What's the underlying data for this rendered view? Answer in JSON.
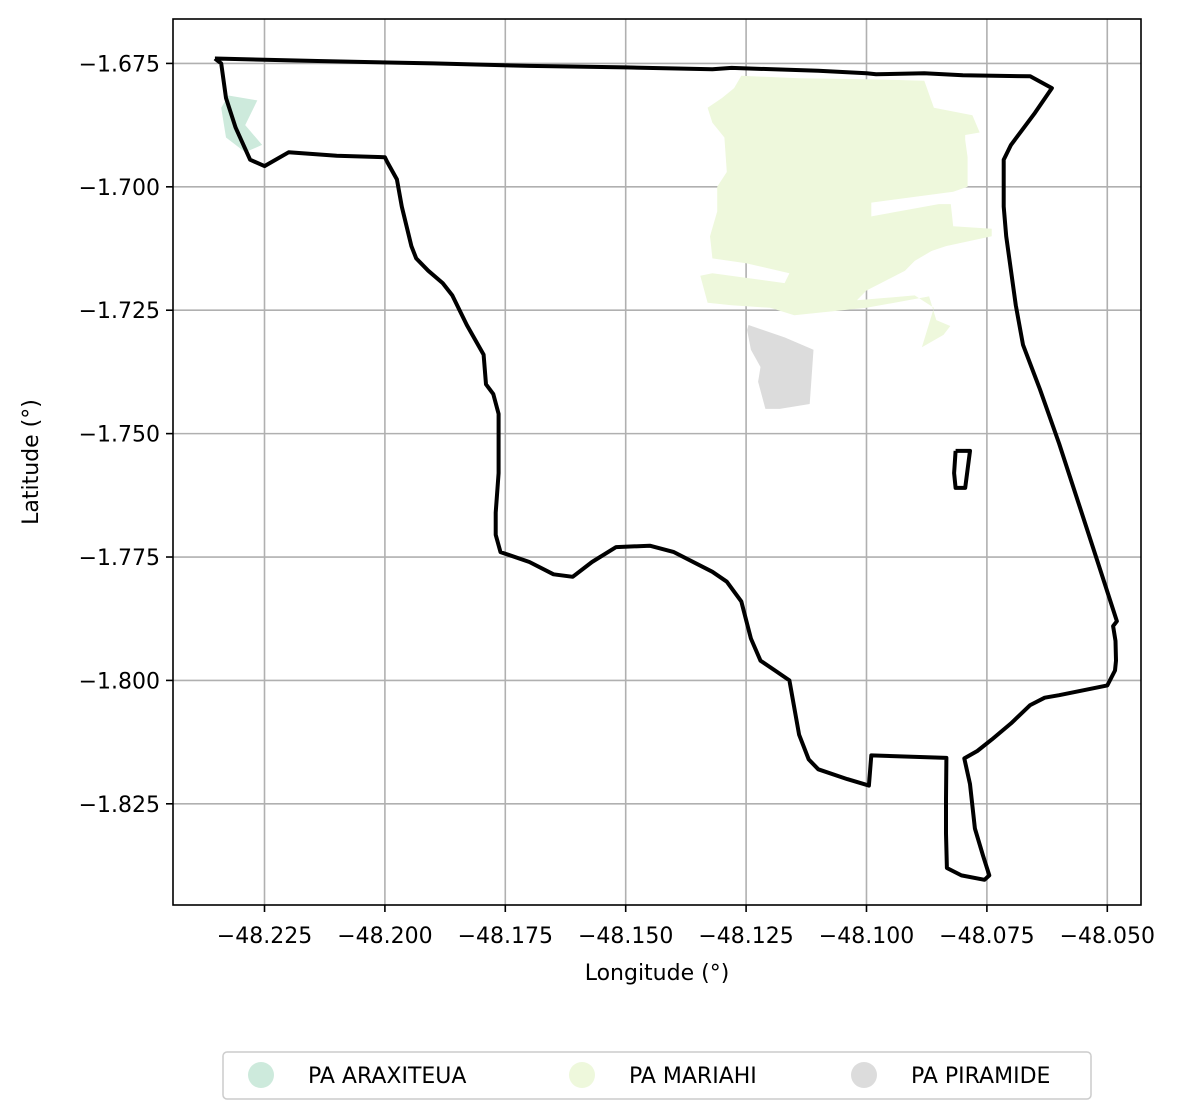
{
  "chart_data": {
    "type": "map",
    "xlabel": "Longitude (°)",
    "ylabel": "Latitude (°)",
    "xlim": [
      -48.244,
      -48.043
    ],
    "ylim": [
      -1.8455,
      -1.666
    ],
    "grid": true,
    "xticks": [
      -48.225,
      -48.2,
      -48.175,
      -48.15,
      -48.125,
      -48.1,
      -48.075,
      -48.05
    ],
    "xtick_labels": [
      "−48.225",
      "−48.200",
      "−48.175",
      "−48.150",
      "−48.125",
      "−48.100",
      "−48.075",
      "−48.050"
    ],
    "yticks": [
      -1.675,
      -1.7,
      -1.725,
      -1.75,
      -1.775,
      -1.8,
      -1.825
    ],
    "ytick_labels": [
      "−1.675",
      "−1.700",
      "−1.725",
      "−1.750",
      "−1.775",
      "−1.800",
      "−1.825"
    ],
    "legend_position": "below",
    "legend": [
      {
        "label": "PA ARAXITEUA",
        "color": "#cdeadc"
      },
      {
        "label": "PA MARIAHI",
        "color": "#eef8dc"
      },
      {
        "label": "PA PIRAMIDE",
        "color": "#dcdcdc"
      }
    ],
    "boundary_color": "#000000",
    "boundary": [
      [
        -48.2353,
        -1.674
      ],
      [
        -48.214,
        -1.6745
      ],
      [
        -48.19,
        -1.675
      ],
      [
        -48.17,
        -1.6755
      ],
      [
        -48.15,
        -1.6758
      ],
      [
        -48.132,
        -1.6762
      ],
      [
        -48.128,
        -1.6759
      ],
      [
        -48.11,
        -1.6765
      ],
      [
        -48.1,
        -1.677
      ],
      [
        -48.098,
        -1.6772
      ],
      [
        -48.088,
        -1.677
      ],
      [
        -48.08,
        -1.6774
      ],
      [
        -48.066,
        -1.6776
      ],
      [
        -48.0615,
        -1.68
      ],
      [
        -48.065,
        -1.685
      ],
      [
        -48.07,
        -1.6915
      ],
      [
        -48.0715,
        -1.6945
      ],
      [
        -48.0715,
        -1.704
      ],
      [
        -48.071,
        -1.71
      ],
      [
        -48.069,
        -1.724
      ],
      [
        -48.0675,
        -1.732
      ],
      [
        -48.064,
        -1.741
      ],
      [
        -48.06,
        -1.752
      ],
      [
        -48.056,
        -1.764
      ],
      [
        -48.052,
        -1.776
      ],
      [
        -48.048,
        -1.788
      ],
      [
        -48.0488,
        -1.789
      ],
      [
        -48.0483,
        -1.792
      ],
      [
        -48.0482,
        -1.796
      ],
      [
        -48.0484,
        -1.798
      ],
      [
        -48.05,
        -1.801
      ],
      [
        -48.06,
        -1.803
      ],
      [
        -48.063,
        -1.8035
      ],
      [
        -48.066,
        -1.805
      ],
      [
        -48.07,
        -1.8087
      ],
      [
        -48.074,
        -1.812
      ],
      [
        -48.077,
        -1.8143
      ],
      [
        -48.0797,
        -1.8158
      ],
      [
        -48.0785,
        -1.821
      ],
      [
        -48.0775,
        -1.83
      ],
      [
        -48.0758,
        -1.8355
      ],
      [
        -48.0745,
        -1.8395
      ],
      [
        -48.0755,
        -1.8404
      ],
      [
        -48.0803,
        -1.8395
      ],
      [
        -48.0833,
        -1.838
      ],
      [
        -48.0835,
        -1.831
      ],
      [
        -48.0835,
        -1.824
      ],
      [
        -48.0834,
        -1.8157
      ],
      [
        -48.099,
        -1.8152
      ],
      [
        -48.0995,
        -1.8213
      ],
      [
        -48.104,
        -1.82
      ],
      [
        -48.11,
        -1.818
      ],
      [
        -48.112,
        -1.816
      ],
      [
        -48.114,
        -1.811
      ],
      [
        -48.116,
        -1.8
      ],
      [
        -48.119,
        -1.798
      ],
      [
        -48.122,
        -1.796
      ],
      [
        -48.124,
        -1.7915
      ],
      [
        -48.126,
        -1.784
      ],
      [
        -48.129,
        -1.78
      ],
      [
        -48.132,
        -1.778
      ],
      [
        -48.14,
        -1.774
      ],
      [
        -48.145,
        -1.7727
      ],
      [
        -48.152,
        -1.773
      ],
      [
        -48.157,
        -1.776
      ],
      [
        -48.161,
        -1.779
      ],
      [
        -48.165,
        -1.7785
      ],
      [
        -48.17,
        -1.776
      ],
      [
        -48.176,
        -1.774
      ],
      [
        -48.177,
        -1.7705
      ],
      [
        -48.177,
        -1.766
      ],
      [
        -48.1764,
        -1.758
      ],
      [
        -48.1764,
        -1.746
      ],
      [
        -48.1775,
        -1.742
      ],
      [
        -48.179,
        -1.74
      ],
      [
        -48.1795,
        -1.734
      ],
      [
        -48.183,
        -1.728
      ],
      [
        -48.186,
        -1.722
      ],
      [
        -48.188,
        -1.7195
      ],
      [
        -48.191,
        -1.717
      ],
      [
        -48.1935,
        -1.7145
      ],
      [
        -48.1945,
        -1.712
      ],
      [
        -48.1965,
        -1.704
      ],
      [
        -48.1975,
        -1.6985
      ],
      [
        -48.1995,
        -1.695
      ],
      [
        -48.2,
        -1.694
      ],
      [
        -48.21,
        -1.6937
      ],
      [
        -48.22,
        -1.693
      ],
      [
        -48.225,
        -1.6958
      ],
      [
        -48.228,
        -1.6945
      ],
      [
        -48.231,
        -1.688
      ],
      [
        -48.233,
        -1.682
      ],
      [
        -48.234,
        -1.675
      ],
      [
        -48.2353,
        -1.674
      ]
    ],
    "boundary_inner": [
      [
        -48.0815,
        -1.7535
      ],
      [
        -48.0785,
        -1.7535
      ],
      [
        -48.0795,
        -1.761
      ],
      [
        -48.0815,
        -1.761
      ],
      [
        -48.0818,
        -1.758
      ],
      [
        -48.0815,
        -1.7535
      ]
    ],
    "polygons": [
      {
        "name": "PA ARAXITEUA",
        "color": "#cdeadc",
        "coords": [
          [
            -48.2325,
            -1.6815
          ],
          [
            -48.2265,
            -1.6825
          ],
          [
            -48.229,
            -1.6875
          ],
          [
            -48.2255,
            -1.6915
          ],
          [
            -48.229,
            -1.693
          ],
          [
            -48.233,
            -1.69
          ],
          [
            -48.234,
            -1.684
          ],
          [
            -48.2325,
            -1.6815
          ]
        ]
      },
      {
        "name": "PA MARIAHI",
        "color": "#eef8dc",
        "coords": [
          [
            -48.126,
            -1.6775
          ],
          [
            -48.114,
            -1.678
          ],
          [
            -48.1,
            -1.6782
          ],
          [
            -48.088,
            -1.6785
          ],
          [
            -48.086,
            -1.684
          ],
          [
            -48.078,
            -1.6855
          ],
          [
            -48.0765,
            -1.689
          ],
          [
            -48.0795,
            -1.6895
          ],
          [
            -48.0795,
            -1.6905
          ],
          [
            -48.079,
            -1.694
          ],
          [
            -48.079,
            -1.7
          ],
          [
            -48.082,
            -1.701
          ],
          [
            -48.099,
            -1.7032
          ],
          [
            -48.099,
            -1.706
          ],
          [
            -48.085,
            -1.7035
          ],
          [
            -48.0825,
            -1.7035
          ],
          [
            -48.082,
            -1.708
          ],
          [
            -48.074,
            -1.7085
          ],
          [
            -48.074,
            -1.71
          ],
          [
            -48.0835,
            -1.712
          ],
          [
            -48.0865,
            -1.713
          ],
          [
            -48.09,
            -1.715
          ],
          [
            -48.092,
            -1.717
          ],
          [
            -48.096,
            -1.719
          ],
          [
            -48.1,
            -1.721
          ],
          [
            -48.102,
            -1.723
          ],
          [
            -48.09,
            -1.722
          ],
          [
            -48.086,
            -1.7245
          ],
          [
            -48.0885,
            -1.7325
          ],
          [
            -48.084,
            -1.73
          ],
          [
            -48.0826,
            -1.7282
          ],
          [
            -48.0855,
            -1.727
          ],
          [
            -48.087,
            -1.7222
          ],
          [
            -48.1,
            -1.7245
          ],
          [
            -48.115,
            -1.726
          ],
          [
            -48.12,
            -1.7245
          ],
          [
            -48.128,
            -1.724
          ],
          [
            -48.133,
            -1.7235
          ],
          [
            -48.1345,
            -1.718
          ],
          [
            -48.132,
            -1.7175
          ],
          [
            -48.117,
            -1.7195
          ],
          [
            -48.116,
            -1.7175
          ],
          [
            -48.125,
            -1.7155
          ],
          [
            -48.132,
            -1.7145
          ],
          [
            -48.1325,
            -1.71
          ],
          [
            -48.131,
            -1.705
          ],
          [
            -48.131,
            -1.7
          ],
          [
            -48.129,
            -1.697
          ],
          [
            -48.1295,
            -1.69
          ],
          [
            -48.132,
            -1.687
          ],
          [
            -48.133,
            -1.684
          ],
          [
            -48.13,
            -1.682
          ],
          [
            -48.1275,
            -1.68
          ],
          [
            -48.126,
            -1.6775
          ]
        ]
      },
      {
        "name": "PA PIRAMIDE",
        "color": "#dcdcdc",
        "coords": [
          [
            -48.1245,
            -1.728
          ],
          [
            -48.117,
            -1.7305
          ],
          [
            -48.111,
            -1.733
          ],
          [
            -48.1115,
            -1.74
          ],
          [
            -48.1118,
            -1.744
          ],
          [
            -48.118,
            -1.745
          ],
          [
            -48.121,
            -1.745
          ],
          [
            -48.1225,
            -1.7395
          ],
          [
            -48.122,
            -1.7365
          ],
          [
            -48.124,
            -1.733
          ],
          [
            -48.1248,
            -1.729
          ],
          [
            -48.1245,
            -1.728
          ]
        ]
      }
    ]
  }
}
